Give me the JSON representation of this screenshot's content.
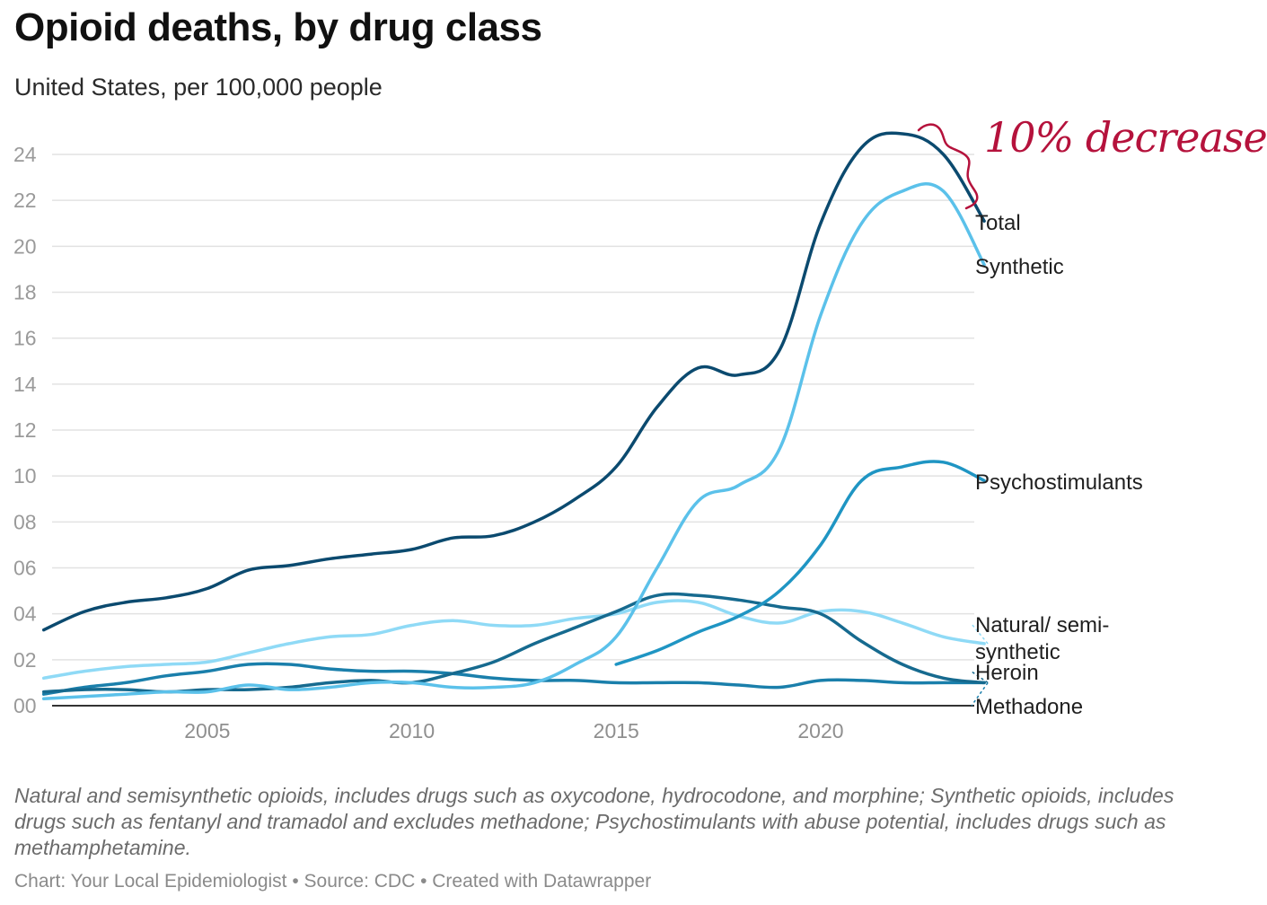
{
  "title": "Opioid deaths, by drug class",
  "subtitle": "United States, per 100,000 people",
  "notes": "Natural and semisynthetic opioids, includes drugs such as oxycodone, hydrocodone, and morphine; Synthetic opioids, includes drugs such as fentanyl and tramadol and excludes methadone; Psychostimulants with abuse potential, includes drugs such as methamphetamine.",
  "credit": "Chart: Your Local Epidemiologist • Source: CDC • Created with Datawrapper",
  "annotation": "10% decrease",
  "colors": {
    "accent_annotation": "#b5123c",
    "grid": "#e2e2e2",
    "axis": "#333333",
    "tick_text": "#9a9a9a"
  },
  "chart_data": {
    "type": "line",
    "title": "Opioid deaths, by drug class",
    "subtitle": "United States, per 100,000 people",
    "xlim": [
      2001,
      2024
    ],
    "ylim": [
      0,
      24
    ],
    "x_ticks": [
      2005,
      2010,
      2015,
      2020
    ],
    "x_tick_labels": [
      "2005",
      "2010",
      "2015",
      "2020"
    ],
    "y_ticks": [
      0,
      2,
      4,
      6,
      8,
      10,
      12,
      14,
      16,
      18,
      20,
      22,
      24
    ],
    "y_tick_labels": [
      "00",
      "02",
      "04",
      "06",
      "08",
      "10",
      "12",
      "14",
      "16",
      "18",
      "20",
      "22",
      "24"
    ],
    "grid": true,
    "legend": "direct labels at line ends (right)",
    "series": [
      {
        "name": "Total",
        "color": "#0b4a6f",
        "x": [
          2001,
          2002,
          2003,
          2004,
          2005,
          2006,
          2007,
          2008,
          2009,
          2010,
          2011,
          2012,
          2013,
          2014,
          2015,
          2016,
          2017,
          2018,
          2019,
          2020,
          2021,
          2022,
          2023,
          2024
        ],
        "values": [
          3.3,
          4.1,
          4.5,
          4.7,
          5.1,
          5.9,
          6.1,
          6.4,
          6.6,
          6.8,
          7.3,
          7.4,
          8.0,
          9.0,
          10.4,
          13.0,
          14.7,
          14.4,
          15.5,
          21.0,
          24.3,
          24.9,
          24.0,
          21.1
        ]
      },
      {
        "name": "Synthetic",
        "color": "#5bc1ea",
        "x": [
          2001,
          2002,
          2003,
          2004,
          2005,
          2006,
          2007,
          2008,
          2009,
          2010,
          2011,
          2012,
          2013,
          2014,
          2015,
          2016,
          2017,
          2018,
          2019,
          2020,
          2021,
          2022,
          2023,
          2024
        ],
        "values": [
          0.3,
          0.4,
          0.5,
          0.6,
          0.6,
          0.9,
          0.7,
          0.8,
          1.0,
          1.0,
          0.8,
          0.8,
          1.0,
          1.8,
          3.0,
          6.0,
          8.9,
          9.6,
          11.2,
          17.0,
          21.0,
          22.4,
          22.4,
          19.2
        ]
      },
      {
        "name": "Psychostimulants",
        "color": "#1f95c3",
        "x": [
          2015,
          2016,
          2017,
          2018,
          2019,
          2020,
          2021,
          2022,
          2023,
          2024
        ],
        "values": [
          1.8,
          2.4,
          3.2,
          3.9,
          5.0,
          7.0,
          9.8,
          10.4,
          10.6,
          9.8
        ]
      },
      {
        "name": "Natural/ semi-synthetic",
        "color": "#8fdaf6",
        "x": [
          2001,
          2002,
          2003,
          2004,
          2005,
          2006,
          2007,
          2008,
          2009,
          2010,
          2011,
          2012,
          2013,
          2014,
          2015,
          2016,
          2017,
          2018,
          2019,
          2020,
          2021,
          2022,
          2023,
          2024
        ],
        "values": [
          1.2,
          1.5,
          1.7,
          1.8,
          1.9,
          2.3,
          2.7,
          3.0,
          3.1,
          3.5,
          3.7,
          3.5,
          3.5,
          3.8,
          4.0,
          4.5,
          4.5,
          3.9,
          3.6,
          4.1,
          4.1,
          3.6,
          3.0,
          2.7
        ]
      },
      {
        "name": "Heroin",
        "color": "#166a8f",
        "x": [
          2001,
          2002,
          2003,
          2004,
          2005,
          2006,
          2007,
          2008,
          2009,
          2010,
          2011,
          2012,
          2013,
          2014,
          2015,
          2016,
          2017,
          2018,
          2019,
          2020,
          2021,
          2022,
          2023,
          2024
        ],
        "values": [
          0.6,
          0.7,
          0.7,
          0.6,
          0.7,
          0.7,
          0.8,
          1.0,
          1.1,
          1.0,
          1.4,
          1.9,
          2.7,
          3.4,
          4.1,
          4.8,
          4.8,
          4.6,
          4.3,
          4.0,
          2.8,
          1.8,
          1.2,
          1.0
        ]
      },
      {
        "name": "Methadone",
        "color": "#1a7fab",
        "x": [
          2001,
          2002,
          2003,
          2004,
          2005,
          2006,
          2007,
          2008,
          2009,
          2010,
          2011,
          2012,
          2013,
          2014,
          2015,
          2016,
          2017,
          2018,
          2019,
          2020,
          2021,
          2022,
          2023,
          2024
        ],
        "values": [
          0.5,
          0.8,
          1.0,
          1.3,
          1.5,
          1.8,
          1.8,
          1.6,
          1.5,
          1.5,
          1.4,
          1.2,
          1.1,
          1.1,
          1.0,
          1.0,
          1.0,
          0.9,
          0.8,
          1.1,
          1.1,
          1.0,
          1.0,
          1.0
        ]
      }
    ],
    "end_labels": [
      {
        "series": "Total",
        "text": "Total"
      },
      {
        "series": "Synthetic",
        "text": "Synthetic"
      },
      {
        "series": "Psychostimulants",
        "text": "Psychostimulants"
      },
      {
        "series": "Natural/ semi-synthetic",
        "text_lines": [
          "Natural/ semi-",
          "synthetic"
        ]
      },
      {
        "series": "Heroin",
        "text": "Heroin"
      },
      {
        "series": "Methadone",
        "text": "Methadone"
      }
    ]
  }
}
